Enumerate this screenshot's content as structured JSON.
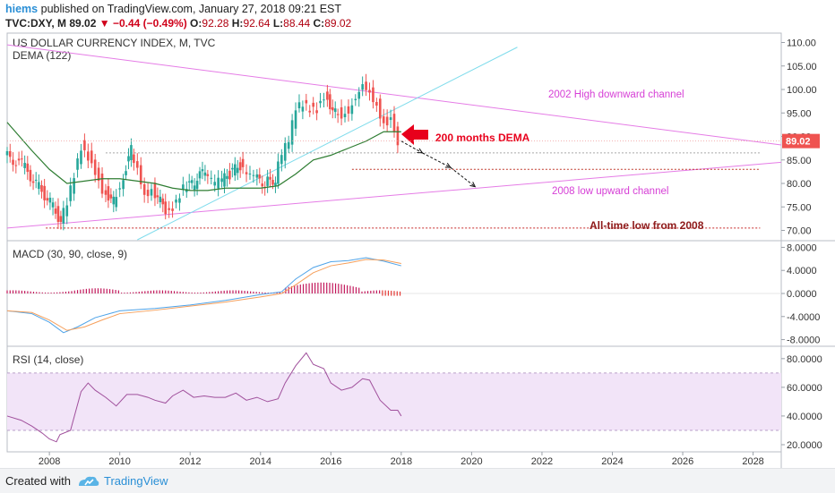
{
  "header": {
    "author": "hiems",
    "published": "published on TradingView.com, January 27, 2018 09:21 EST",
    "symbol": "TVC:DXY, M",
    "last": "89.02",
    "change": "−0.44 (−0.49%)",
    "ohlc": {
      "o_label": "O:",
      "o": "92.28",
      "h_label": "H:",
      "h": "92.64",
      "l_label": "L:",
      "l": "88.44",
      "c_label": "C:",
      "c": "89.02"
    }
  },
  "footer": {
    "created": "Created with",
    "brand": "TradingView"
  },
  "colors": {
    "up": "#26a69a",
    "down": "#ef5350",
    "dema": "#2e7d32",
    "channel": "#e57ce6",
    "trend_cyan": "#7fdcec",
    "macd": "#4ea3e8",
    "signal": "#f59f5b",
    "hist": "#c2185b",
    "rsi": "#a0509c",
    "rsi_band": "#f2e4f8",
    "annotation_magenta": "#d63fd6",
    "annotation_red": "#e8001c",
    "lowline": "#c62828"
  },
  "chart_data": [
    {
      "type": "candlestick",
      "title": "US DOLLAR CURRENCY INDEX, M, TVC",
      "indicator": "DEMA (122)",
      "ylim": [
        68,
        112
      ],
      "y_ticks": [
        "110.00",
        "105.00",
        "100.00",
        "95.00",
        "90.00",
        "85.00",
        "80.00",
        "75.00",
        "70.00"
      ],
      "x_ticks": [
        "2008",
        "2010",
        "2012",
        "2014",
        "2016",
        "2018",
        "2020",
        "2022",
        "2024",
        "2026",
        "2028"
      ],
      "xlim": [
        2006.8,
        2028.8
      ],
      "last_price_label": "89.02",
      "ohlc_points": [
        [
          2006.8,
          86
        ],
        [
          2007.3,
          84
        ],
        [
          2007.7,
          80
        ],
        [
          2008.1,
          76
        ],
        [
          2008.4,
          72
        ],
        [
          2008.6,
          76
        ],
        [
          2008.8,
          82
        ],
        [
          2009.0,
          88
        ],
        [
          2009.2,
          86
        ],
        [
          2009.4,
          83
        ],
        [
          2009.6,
          79
        ],
        [
          2009.9,
          76
        ],
        [
          2010.1,
          80
        ],
        [
          2010.4,
          87
        ],
        [
          2010.6,
          84
        ],
        [
          2010.8,
          78
        ],
        [
          2011.0,
          79
        ],
        [
          2011.3,
          75
        ],
        [
          2011.5,
          74
        ],
        [
          2011.7,
          76
        ],
        [
          2011.9,
          79
        ],
        [
          2012.2,
          80
        ],
        [
          2012.5,
          83
        ],
        [
          2012.7,
          80
        ],
        [
          2012.9,
          80
        ],
        [
          2013.2,
          82
        ],
        [
          2013.5,
          84
        ],
        [
          2013.7,
          81
        ],
        [
          2013.9,
          81
        ],
        [
          2014.2,
          80
        ],
        [
          2014.5,
          81
        ],
        [
          2014.7,
          86
        ],
        [
          2014.9,
          89
        ],
        [
          2015.1,
          96
        ],
        [
          2015.3,
          97
        ],
        [
          2015.5,
          96
        ],
        [
          2015.7,
          96
        ],
        [
          2015.9,
          99
        ],
        [
          2016.2,
          95
        ],
        [
          2016.4,
          95
        ],
        [
          2016.6,
          96
        ],
        [
          2016.8,
          99
        ],
        [
          2017.0,
          102
        ],
        [
          2017.2,
          100
        ],
        [
          2017.4,
          97
        ],
        [
          2017.6,
          93
        ],
        [
          2017.8,
          94
        ],
        [
          2017.9,
          92
        ],
        [
          2018.0,
          89
        ]
      ],
      "dema_points": [
        [
          2006.8,
          93
        ],
        [
          2007.5,
          87
        ],
        [
          2008.0,
          83
        ],
        [
          2008.5,
          80
        ],
        [
          2009.0,
          80.5
        ],
        [
          2009.5,
          81
        ],
        [
          2010.0,
          81
        ],
        [
          2010.5,
          80.5
        ],
        [
          2011.0,
          80
        ],
        [
          2011.5,
          79
        ],
        [
          2012.0,
          78.5
        ],
        [
          2012.5,
          78.5
        ],
        [
          2013.0,
          79
        ],
        [
          2013.5,
          79
        ],
        [
          2014.0,
          79
        ],
        [
          2014.5,
          79.5
        ],
        [
          2015.0,
          82
        ],
        [
          2015.5,
          85
        ],
        [
          2016.0,
          86
        ],
        [
          2016.5,
          87.5
        ],
        [
          2017.0,
          89
        ],
        [
          2017.5,
          91
        ],
        [
          2018.0,
          91
        ]
      ],
      "lines": [
        {
          "name": "2002 High downward channel",
          "from": [
            2006.8,
            109.5
          ],
          "to": [
            2028.8,
            88.2
          ]
        },
        {
          "name": "2008 low upward channel",
          "from": [
            2006.8,
            70.5
          ],
          "to": [
            2028.8,
            84.5
          ]
        },
        {
          "name": "trend",
          "from": [
            2010.5,
            68
          ],
          "to": [
            2021.3,
            109
          ]
        },
        {
          "name": "level1",
          "from": [
            2009.6,
            86.5
          ],
          "to": [
            2028.2,
            86.5
          ]
        },
        {
          "name": "level2",
          "from": [
            2016.6,
            83
          ],
          "to": [
            2028.2,
            83
          ]
        },
        {
          "name": "All-time low from 2008",
          "from": [
            2007.9,
            70.5
          ],
          "to": [
            2028.2,
            70.5
          ]
        }
      ],
      "annotations": {
        "channel_high": "2002 High downward channel",
        "channel_low": "2008 low upward channel",
        "dema_label": "200 months DEMA",
        "all_time_low": "All-time low from 2008"
      }
    },
    {
      "type": "line",
      "title": "MACD (30, 90, close, 9)",
      "ylim": [
        -9,
        9
      ],
      "y_ticks": [
        "8.0000",
        "4.0000",
        "0.0000",
        "-4.0000",
        "-8.0000"
      ],
      "series": [
        {
          "name": "MACD",
          "points": [
            [
              2006.8,
              -3
            ],
            [
              2007.5,
              -3.5
            ],
            [
              2008.0,
              -5
            ],
            [
              2008.4,
              -6.8
            ],
            [
              2008.8,
              -5.8
            ],
            [
              2009.3,
              -4.2
            ],
            [
              2010.0,
              -3
            ],
            [
              2011.0,
              -2.6
            ],
            [
              2012.0,
              -2
            ],
            [
              2013.0,
              -1.2
            ],
            [
              2014.0,
              -0.2
            ],
            [
              2014.6,
              0.3
            ],
            [
              2015.0,
              2.5
            ],
            [
              2015.5,
              4.5
            ],
            [
              2016.0,
              5.5
            ],
            [
              2016.5,
              5.7
            ],
            [
              2017.0,
              6.2
            ],
            [
              2017.5,
              5.6
            ],
            [
              2018.0,
              4.8
            ]
          ]
        },
        {
          "name": "Signal",
          "points": [
            [
              2006.8,
              -3
            ],
            [
              2007.5,
              -3.3
            ],
            [
              2008.0,
              -4.6
            ],
            [
              2008.5,
              -6.4
            ],
            [
              2009.0,
              -5.8
            ],
            [
              2009.5,
              -4.6
            ],
            [
              2010.0,
              -3.5
            ],
            [
              2011.0,
              -2.9
            ],
            [
              2012.0,
              -2.2
            ],
            [
              2013.0,
              -1.5
            ],
            [
              2014.0,
              -0.6
            ],
            [
              2014.6,
              0
            ],
            [
              2015.0,
              1.5
            ],
            [
              2015.5,
              3.6
            ],
            [
              2016.0,
              4.8
            ],
            [
              2016.5,
              5.3
            ],
            [
              2017.0,
              5.9
            ],
            [
              2017.5,
              5.8
            ],
            [
              2018.0,
              5.2
            ]
          ]
        }
      ],
      "histogram_x": [
        2006.8,
        2018.0
      ]
    },
    {
      "type": "line",
      "title": "RSI (14, close)",
      "ylim": [
        15,
        88
      ],
      "y_ticks": [
        "80.0000",
        "60.0000",
        "40.0000",
        "20.0000"
      ],
      "band": [
        30,
        70
      ],
      "series": [
        {
          "name": "RSI",
          "points": [
            [
              2006.8,
              40
            ],
            [
              2007.2,
              37
            ],
            [
              2007.5,
              33
            ],
            [
              2007.8,
              28
            ],
            [
              2008.0,
              24
            ],
            [
              2008.2,
              22
            ],
            [
              2008.3,
              27
            ],
            [
              2008.6,
              30
            ],
            [
              2008.9,
              57
            ],
            [
              2009.1,
              63
            ],
            [
              2009.3,
              58
            ],
            [
              2009.6,
              53
            ],
            [
              2009.9,
              47
            ],
            [
              2010.2,
              55
            ],
            [
              2010.5,
              55
            ],
            [
              2010.8,
              53
            ],
            [
              2011.0,
              51
            ],
            [
              2011.3,
              49
            ],
            [
              2011.5,
              54
            ],
            [
              2011.8,
              58
            ],
            [
              2012.1,
              53
            ],
            [
              2012.4,
              54
            ],
            [
              2012.7,
              53
            ],
            [
              2013.0,
              53
            ],
            [
              2013.3,
              56
            ],
            [
              2013.6,
              51
            ],
            [
              2013.9,
              53
            ],
            [
              2014.2,
              50
            ],
            [
              2014.5,
              52
            ],
            [
              2014.7,
              63
            ],
            [
              2015.0,
              75
            ],
            [
              2015.3,
              84
            ],
            [
              2015.5,
              76
            ],
            [
              2015.8,
              73
            ],
            [
              2016.0,
              63
            ],
            [
              2016.3,
              58
            ],
            [
              2016.6,
              60
            ],
            [
              2016.9,
              66
            ],
            [
              2017.1,
              65
            ],
            [
              2017.4,
              51
            ],
            [
              2017.7,
              44
            ],
            [
              2017.9,
              44
            ],
            [
              2018.0,
              40
            ]
          ]
        }
      ]
    }
  ]
}
